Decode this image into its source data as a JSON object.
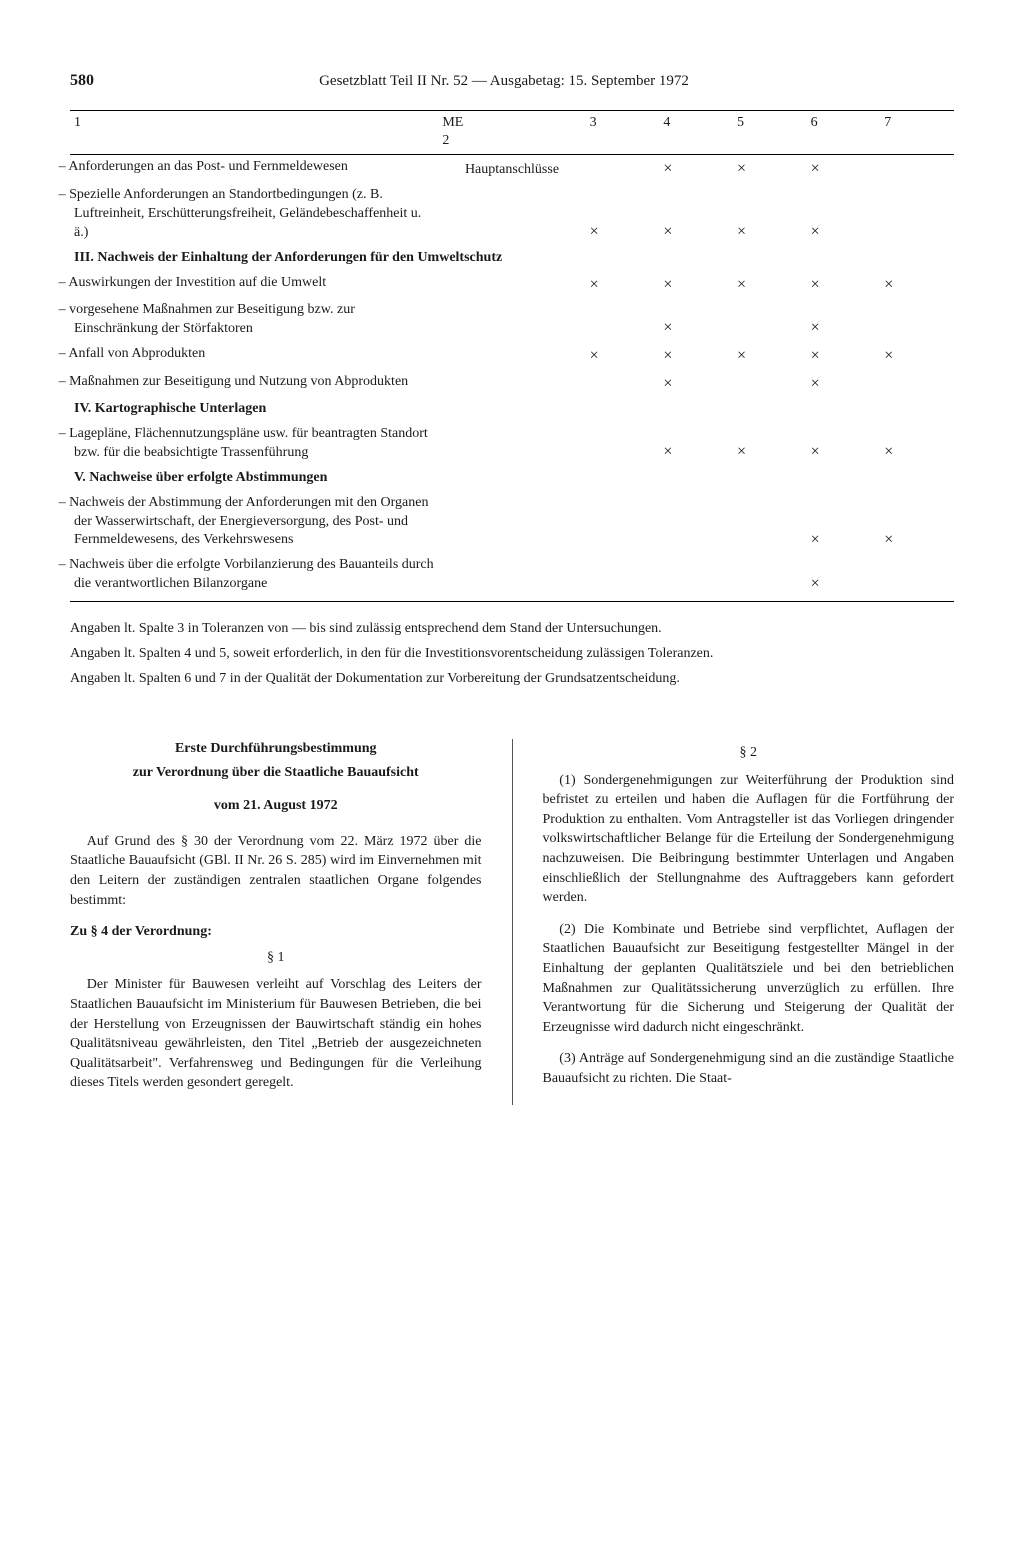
{
  "page_number": "580",
  "header_title": "Gesetzblatt Teil II Nr. 52 — Ausgabetag: 15. September 1972",
  "table": {
    "col_headers": [
      "1",
      "ME\n2",
      "3",
      "4",
      "5",
      "6",
      "7"
    ],
    "rows": [
      {
        "type": "item",
        "text": "– Anforderungen an das Post- und Fernmeldewesen",
        "me": "Hauptanschlüsse",
        "marks": [
          "",
          "×",
          "×",
          "×",
          ""
        ]
      },
      {
        "type": "item",
        "text": "– Spezielle Anforderungen an Standortbedingungen (z. B. Luftreinheit, Erschütterungsfreiheit, Geländebeschaffenheit u. ä.)",
        "me": "",
        "marks": [
          "×",
          "×",
          "×",
          "×",
          ""
        ]
      },
      {
        "type": "section",
        "text": "III. Nachweis der Einhaltung der Anforderungen für den Umweltschutz"
      },
      {
        "type": "item",
        "text": "– Auswirkungen der Investition auf die Umwelt",
        "me": "",
        "marks": [
          "×",
          "×",
          "×",
          "×",
          "×"
        ]
      },
      {
        "type": "item",
        "text": "– vorgesehene Maßnahmen zur Beseitigung bzw. zur Einschränkung der Störfaktoren",
        "me": "",
        "marks": [
          "",
          "×",
          "",
          "×",
          ""
        ]
      },
      {
        "type": "item",
        "text": "– Anfall von Abprodukten",
        "me": "",
        "marks": [
          "×",
          "×",
          "×",
          "×",
          "×"
        ]
      },
      {
        "type": "item",
        "text": "– Maßnahmen zur Beseitigung und Nutzung von Abprodukten",
        "me": "",
        "marks": [
          "",
          "×",
          "",
          "×",
          ""
        ]
      },
      {
        "type": "section",
        "text": "IV. Kartographische Unterlagen"
      },
      {
        "type": "item",
        "text": "– Lagepläne, Flächennutzungspläne usw. für beantragten Standort bzw. für die beabsichtigte Trassenführung",
        "me": "",
        "marks": [
          "",
          "×",
          "×",
          "×",
          "×"
        ]
      },
      {
        "type": "section",
        "text": "V. Nachweise über erfolgte Abstimmungen"
      },
      {
        "type": "item",
        "text": "– Nachweis der Abstimmung der Anforderungen mit den Organen der Wasserwirtschaft, der Energieversorgung, des Post- und Fernmeldewesens, des Verkehrswesens",
        "me": "",
        "marks": [
          "",
          "",
          "",
          "×",
          "×"
        ]
      },
      {
        "type": "item",
        "text": "– Nachweis über die erfolgte Vorbilanzierung des Bauanteils durch die verantwortlichen Bilanzorgane",
        "me": "",
        "marks": [
          "",
          "",
          "",
          "×",
          ""
        ]
      }
    ]
  },
  "notes": [
    "Angaben lt. Spalte 3 in Toleranzen von — bis sind zulässig entsprechend dem Stand der Untersuchungen.",
    "Angaben lt. Spalten 4 und 5, soweit erforderlich, in den für die Investitionsvorentscheidung zulässigen Toleranzen.",
    "Angaben lt. Spalten 6 und 7 in der Qualität der Dokumentation zur Vorbereitung der Grundsatzentscheidung."
  ],
  "doc": {
    "title1": "Erste Durchführungsbestimmung",
    "title2": "zur Verordnung über die Staatliche Bauaufsicht",
    "date": "vom 21. August 1972",
    "left_intro": "Auf Grund des § 30 der Verordnung vom 22. März 1972 über die Staatliche Bauaufsicht (GBl. II Nr. 26 S. 285) wird im Einvernehmen mit den Leitern der zuständigen zentralen staatlichen Organe folgendes bestimmt:",
    "zu_label": "Zu § 4 der Verordnung:",
    "para1_label": "§ 1",
    "para1_text": "Der Minister für Bauwesen verleiht auf Vorschlag des Leiters der Staatlichen Bauaufsicht im Ministerium für Bauwesen Betrieben, die bei der Herstellung von Erzeugnissen der Bauwirtschaft ständig ein hohes Qualitätsniveau gewährleisten, den Titel „Betrieb der ausgezeichneten Qualitätsarbeit\". Verfahrensweg und Bedingungen für die Verleihung dieses Titels werden gesondert geregelt.",
    "para2_label": "§ 2",
    "para2_1": "(1) Sondergenehmigungen zur Weiterführung der Produktion sind befristet zu erteilen und haben die Auflagen für die Fortführung der Produktion zu enthalten. Vom Antragsteller ist das Vorliegen dringender volkswirtschaftlicher Belange für die Erteilung der Sondergenehmigung nachzuweisen. Die Beibringung bestimmter Unterlagen und Angaben einschließlich der Stellungnahme des Auftraggebers kann gefordert werden.",
    "para2_2": "(2) Die Kombinate und Betriebe sind verpflichtet, Auflagen der Staatlichen Bauaufsicht zur Beseitigung festgestellter Mängel in der Einhaltung der geplanten Qualitätsziele und bei den betrieblichen Maßnahmen zur Qualitätssicherung unverzüglich zu erfüllen. Ihre Verantwortung für die Sicherung und Steigerung der Qualität der Erzeugnisse wird dadurch nicht eingeschränkt.",
    "para2_3": "(3) Anträge auf Sondergenehmigung sind an die zuständige Staatliche Bauaufsicht zu richten. Die Staat-"
  }
}
